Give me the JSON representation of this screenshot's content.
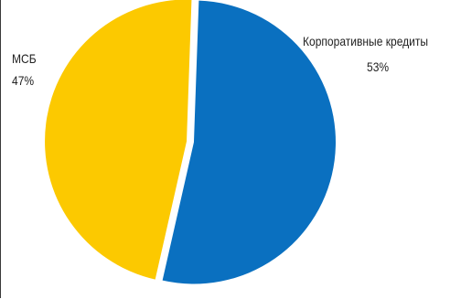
{
  "chart_data": {
    "type": "pie",
    "title": "",
    "slices": [
      {
        "label": "Корпоративные кредиты",
        "value": 53,
        "value_label": "53%",
        "color": "#0a70c0"
      },
      {
        "label": "МСБ",
        "value": 47,
        "value_label": "47%",
        "color": "#fcc900"
      }
    ],
    "start_angle_deg": 0,
    "direction": "clockwise",
    "exploded": true,
    "legend": "none"
  }
}
